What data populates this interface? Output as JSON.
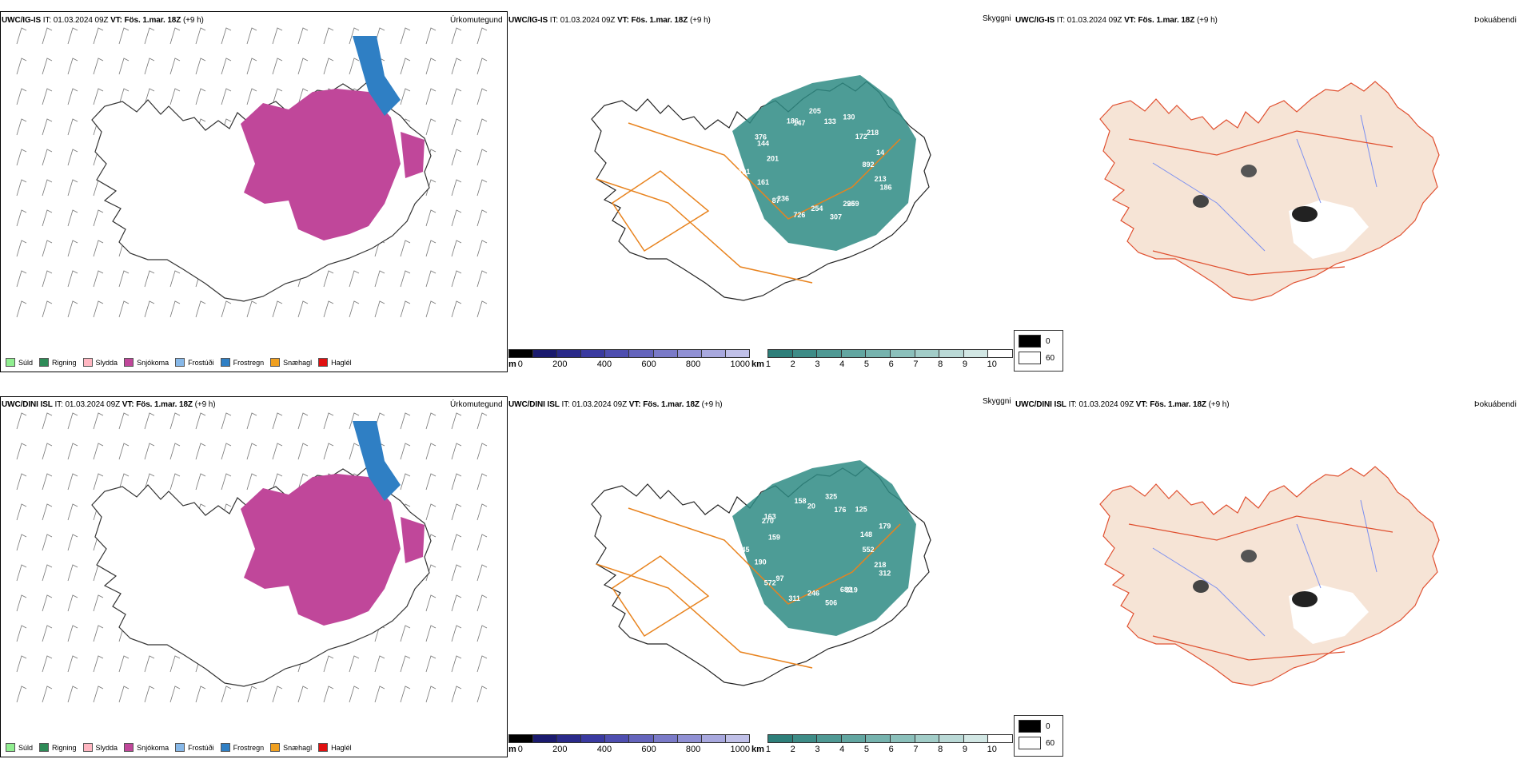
{
  "rows": [
    {
      "model": "UWC/IG-IS",
      "it_label": "IT:",
      "it": "01.03.2024 09Z",
      "vt_label": "VT:",
      "vt": "Fös. 1.mar. 18Z",
      "lead": "(+9 h)",
      "panel_titles": [
        "Úrkomutegund",
        "Skyggni",
        "Þokuábendi"
      ],
      "peak_labels": [
        "892",
        "213",
        "186",
        "259",
        "296",
        "307",
        "254",
        "726",
        "87",
        "236",
        "161",
        "101",
        "201",
        "144",
        "376",
        "186",
        "147",
        "205",
        "133",
        "130",
        "218",
        "172",
        "14"
      ]
    },
    {
      "model": "UWC/DINI ISL",
      "it_label": "IT:",
      "it": "01.03.2024 09Z",
      "vt_label": "VT:",
      "vt": "Fös. 1.mar. 18Z",
      "lead": "(+9 h)",
      "panel_titles": [
        "Úrkomutegund",
        "Skyggni",
        "Þokuábendi"
      ],
      "peak_labels": [
        "552",
        "218",
        "312",
        "219",
        "682",
        "506",
        "246",
        "311",
        "572",
        "97",
        "190",
        "145",
        "159",
        "270",
        "163",
        "158",
        "20",
        "325",
        "176",
        "125",
        "179",
        "148"
      ]
    }
  ],
  "precip_legend": [
    {
      "label": "Súld",
      "color": "#90ee90"
    },
    {
      "label": "Rigning",
      "color": "#2e8b57"
    },
    {
      "label": "Slydda",
      "color": "#ffb6c1"
    },
    {
      "label": "Snjókoma",
      "color": "#c0479a"
    },
    {
      "label": "Frostúði",
      "color": "#87b8e8"
    },
    {
      "label": "Frostregn",
      "color": "#2f7fc4"
    },
    {
      "label": "Snæhagl",
      "color": "#f0a020"
    },
    {
      "label": "Haglél",
      "color": "#e01010"
    }
  ],
  "elev_scale": {
    "unit": "m",
    "ticks": [
      "0",
      "200",
      "400",
      "600",
      "800",
      "1000"
    ]
  },
  "vis_scale": {
    "unit": "km",
    "ticks": [
      "1",
      "2",
      "3",
      "4",
      "5",
      "6",
      "7",
      "8",
      "9",
      "10"
    ]
  },
  "fog_legend": [
    "0",
    "60"
  ],
  "colors": {
    "snow": "#c0479a",
    "freezing_rain": "#2f7fc4",
    "roads": "#e8831e",
    "visibility": "#2e8b84",
    "land_fog": "#f6e4d6",
    "roads_fog": "#e05030",
    "rivers": "#7b8ff0"
  }
}
